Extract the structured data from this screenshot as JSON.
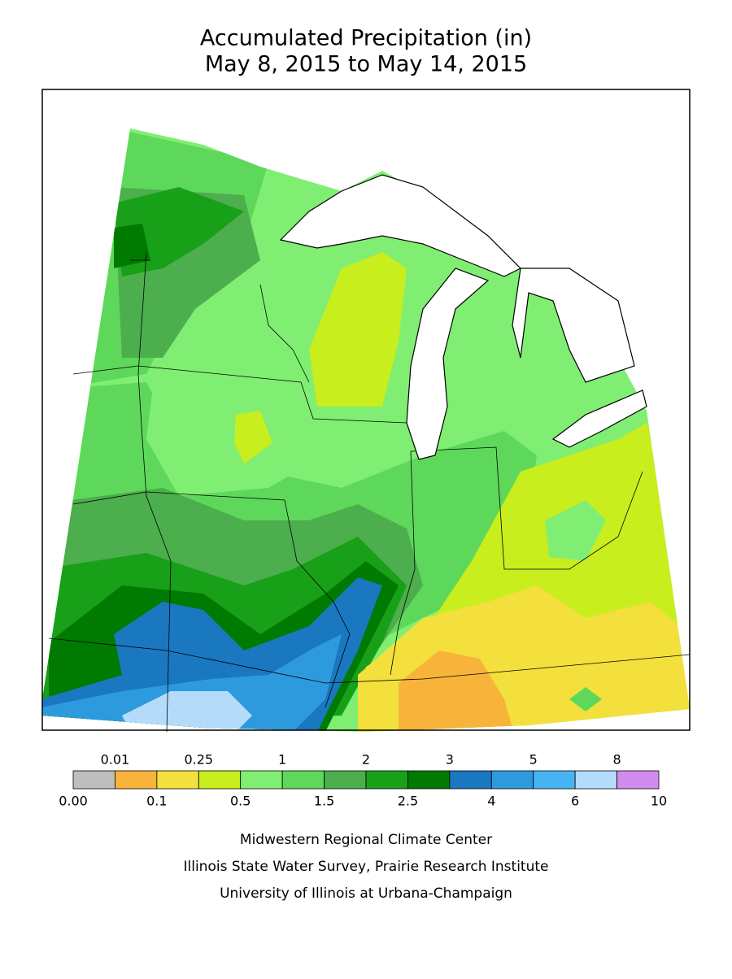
{
  "header": {
    "title": "Accumulated Precipitation (in)",
    "subtitle": "May 8, 2015 to May 14, 2015"
  },
  "legend": {
    "boundaries": [
      "0.00",
      "0.01",
      "0.1",
      "0.25",
      "0.5",
      "1",
      "1.5",
      "2",
      "2.5",
      "3",
      "4",
      "5",
      "6",
      "8",
      "10"
    ],
    "colors": [
      "#bebebe",
      "#f8b43a",
      "#f3e03c",
      "#c8ee1e",
      "#80ee72",
      "#5ed85a",
      "#4cae4c",
      "#18a018",
      "#007a00",
      "#1a78c0",
      "#2e9ade",
      "#46b4f2",
      "#b4dcfa",
      "#d28cf0"
    ]
  },
  "footer": {
    "lines": [
      "Midwestern Regional Climate Center",
      "Illinois State Water Survey, Prairie Research Institute",
      "University of Illinois at Urbana-Champaign"
    ]
  }
}
